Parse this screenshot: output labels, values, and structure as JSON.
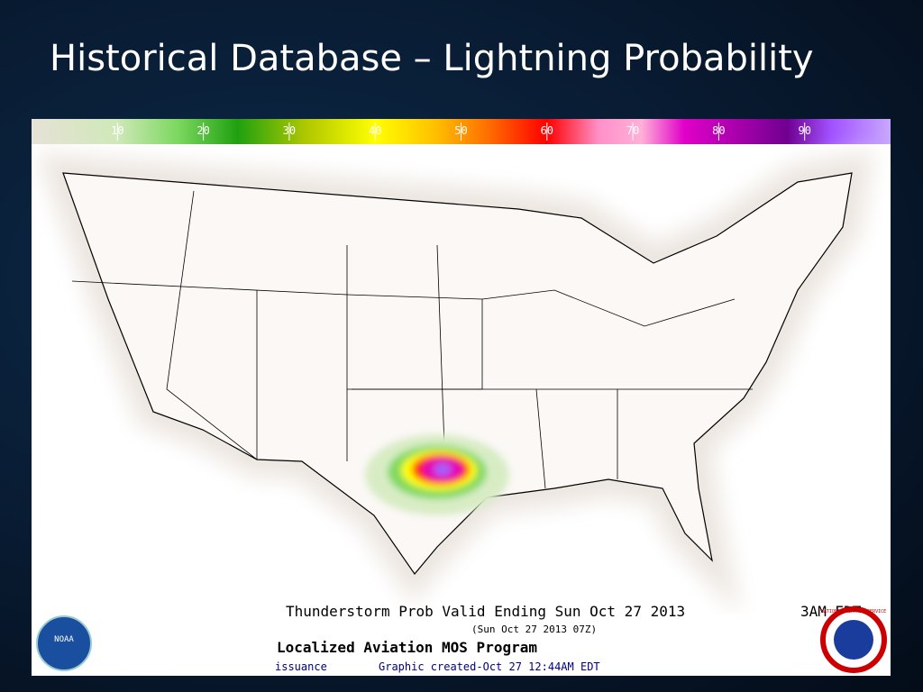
{
  "title": "Historical Database – Lightning Probability",
  "colorbar": {
    "range": [
      0,
      100
    ],
    "ticks": [
      10,
      20,
      30,
      40,
      50,
      60,
      70,
      80,
      90
    ]
  },
  "map": {
    "caption": "Thunderstorm Prob Valid Ending Sun Oct 27 2013",
    "time": "3AM EDT",
    "utc": "(Sun Oct 27 2013 07Z)",
    "program": "Localized Aviation MOS Program",
    "issuance": "issuance",
    "created": "Graphic created-Oct 27 12:44AM EDT",
    "logo_left": "NOAA",
    "logo_right": "NATIONAL WEATHER SERVICE"
  }
}
